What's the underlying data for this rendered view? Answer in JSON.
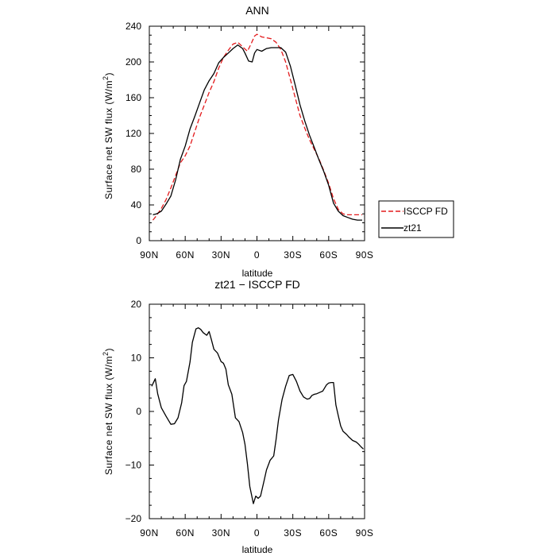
{
  "chart_data": [
    {
      "type": "line",
      "title": "ANN",
      "xlabel": "latitude",
      "ylabel_main": "Surface net SW flux (W/m",
      "ylabel_sup": "2",
      "ylabel_close": ")",
      "xlim": [
        90,
        -90
      ],
      "ylim": [
        0,
        240
      ],
      "x_ticks": [
        90,
        60,
        30,
        0,
        -30,
        -60,
        -90
      ],
      "x_tick_labels": [
        "90N",
        "60N",
        "30N",
        "0",
        "30S",
        "60S",
        "90S"
      ],
      "y_ticks": [
        0,
        40,
        80,
        120,
        160,
        200,
        240
      ],
      "y_tick_labels": [
        "0",
        "40",
        "80",
        "120",
        "160",
        "200",
        "240"
      ],
      "legend": "outside-right",
      "series": [
        {
          "name": "ISCCP FD",
          "color": "#e31a1c",
          "dash": "dashed",
          "x": [
            87,
            84,
            80,
            76,
            72,
            68,
            64,
            60,
            56,
            52,
            48,
            44,
            40,
            36,
            32,
            28,
            24,
            20,
            16,
            12,
            8,
            5,
            2,
            0,
            -4,
            -8,
            -12,
            -16,
            -20,
            -24,
            -28,
            -32,
            -36,
            -40,
            -44,
            -48,
            -52,
            -56,
            -60,
            -64,
            -68,
            -72,
            -76,
            -80,
            -84,
            -88
          ],
          "y": [
            23,
            28,
            36,
            46,
            59,
            73,
            87,
            95,
            106,
            122,
            138,
            152,
            166,
            178,
            193,
            205,
            213,
            220,
            222,
            217,
            212,
            220,
            229,
            231,
            228,
            227,
            226,
            222,
            214,
            200,
            180,
            160,
            140,
            126,
            113,
            102,
            91,
            78,
            64,
            47,
            35,
            30,
            29,
            29,
            29,
            29
          ]
        },
        {
          "name": "zt21",
          "color": "#000000",
          "dash": "solid",
          "x": [
            87,
            84,
            80,
            76,
            72,
            68,
            64,
            60,
            56,
            52,
            48,
            44,
            40,
            36,
            32,
            28,
            24,
            20,
            16,
            12,
            10,
            7,
            4,
            2,
            0,
            -4,
            -8,
            -12,
            -16,
            -20,
            -24,
            -28,
            -32,
            -36,
            -40,
            -44,
            -48,
            -52,
            -56,
            -60,
            -64,
            -68,
            -72,
            -76,
            -80,
            -84,
            -88
          ],
          "y": [
            29,
            30,
            33,
            41,
            50,
            68,
            91,
            106,
            125,
            139,
            154,
            169,
            179,
            187,
            199,
            205,
            210,
            215,
            219,
            215,
            210,
            201,
            200,
            210,
            214,
            212,
            215,
            216,
            216,
            216,
            211,
            195,
            174,
            152,
            134,
            118,
            104,
            90,
            77,
            62,
            42,
            33,
            28,
            26,
            24,
            23,
            23
          ]
        }
      ]
    },
    {
      "type": "line",
      "title": "zt21 − ISCCP FD",
      "xlabel": "latitude",
      "ylabel_main": "Surface net SW flux (W/m",
      "ylabel_sup": "2",
      "ylabel_close": ")",
      "xlim": [
        90,
        -90
      ],
      "ylim": [
        -20,
        20
      ],
      "x_ticks": [
        90,
        60,
        30,
        0,
        -30,
        -60,
        -90
      ],
      "x_tick_labels": [
        "90N",
        "60N",
        "30N",
        "0",
        "30S",
        "60S",
        "90S"
      ],
      "y_ticks": [
        -20,
        -10,
        0,
        10,
        20
      ],
      "y_tick_labels": [
        "−20",
        "−10",
        "0",
        "10",
        "20"
      ],
      "series": [
        {
          "color": "#000000",
          "dash": "solid",
          "x": [
            88,
            85,
            83,
            80,
            76,
            72,
            69,
            66,
            63,
            61,
            59,
            56,
            54,
            51,
            49,
            47,
            45,
            42,
            40,
            38,
            36,
            33,
            30,
            28,
            26,
            24,
            21,
            18,
            15,
            12,
            10,
            8,
            6,
            3,
            1,
            -1,
            -3,
            -6,
            -8,
            -11,
            -14,
            -16,
            -18,
            -21,
            -24,
            -27,
            -30,
            -33,
            -36,
            -39,
            -42,
            -44,
            -46,
            -48,
            -50,
            -53,
            -55,
            -58,
            -60,
            -62,
            -64,
            -66,
            -68,
            -70,
            -72,
            -75,
            -77,
            -80,
            -83,
            -85,
            -87,
            -89
          ],
          "y": [
            4.7,
            6.1,
            3.3,
            0.7,
            -0.9,
            -2.4,
            -2.3,
            -1.2,
            1.6,
            4.8,
            5.6,
            9.2,
            12.9,
            15.4,
            15.6,
            15.3,
            14.7,
            14.2,
            14.9,
            13.3,
            11.6,
            10.9,
            9.3,
            9.0,
            7.9,
            5.0,
            3.2,
            -1.2,
            -1.9,
            -3.9,
            -6.1,
            -9.8,
            -14.0,
            -17.2,
            -15.8,
            -16.2,
            -15.8,
            -12.9,
            -10.9,
            -9.1,
            -8.3,
            -5.2,
            -1.6,
            2.2,
            4.7,
            6.7,
            6.9,
            5.6,
            3.8,
            2.7,
            2.3,
            2.4,
            3.0,
            3.2,
            3.3,
            3.6,
            3.8,
            4.9,
            5.3,
            5.4,
            5.4,
            1.2,
            -0.8,
            -2.7,
            -3.7,
            -4.3,
            -4.8,
            -5.4,
            -5.7,
            -6.1,
            -6.6,
            -7.0
          ]
        }
      ]
    }
  ]
}
